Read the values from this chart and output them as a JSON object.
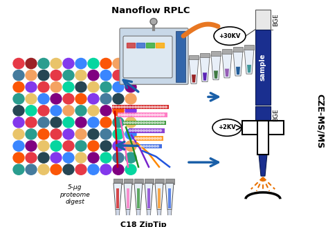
{
  "bg_color": "#ffffff",
  "label_nanoflow": "Nanoflow RPLC",
  "label_ziptip": "C18 ZipTip",
  "label_proteome": "5-μg\nproteome\ndigest",
  "label_cze": "CZE-MS/MS",
  "label_bge_top": "BGE",
  "label_bge_bot": "BGE",
  "label_sample": "sample",
  "label_30kv": "+30KV",
  "label_2kv": "+2KV",
  "arrow_color": "#1a5fa8",
  "figsize": [
    4.74,
    3.29
  ],
  "dpi": 100,
  "dot_grid": [
    [
      "#e63946",
      "#9b2226",
      "#2a9d8f",
      "#e9c46a",
      "#8338ec",
      "#3a86ff",
      "#06d6a0",
      "#fb5607",
      "#f4a261",
      "#457b9d"
    ],
    [
      "#457b9d",
      "#f4a261",
      "#264653",
      "#e63946",
      "#2a9d8f",
      "#e9c46a",
      "#800080",
      "#3a86ff",
      "#e63946",
      "#06d6a0"
    ],
    [
      "#fb5607",
      "#8338ec",
      "#e63946",
      "#f4a261",
      "#06d6a0",
      "#264653",
      "#e9c46a",
      "#2a9d8f",
      "#3a86ff",
      "#800080"
    ],
    [
      "#2a9d8f",
      "#e9c46a",
      "#3a86ff",
      "#800080",
      "#e63946",
      "#fb5607",
      "#8338ec",
      "#457b9d",
      "#264653",
      "#f4a261"
    ],
    [
      "#264653",
      "#06d6a0",
      "#e63946",
      "#3a86ff",
      "#f4a261",
      "#2a9d8f",
      "#e9c46a",
      "#800080",
      "#fb5607",
      "#8338ec"
    ],
    [
      "#8338ec",
      "#e63946",
      "#457b9d",
      "#264653",
      "#06d6a0",
      "#800080",
      "#3a86ff",
      "#fb5607",
      "#2a9d8f",
      "#e9c46a"
    ],
    [
      "#e9c46a",
      "#2a9d8f",
      "#fb5607",
      "#e63946",
      "#8338ec",
      "#f4a261",
      "#264653",
      "#457b9d",
      "#06d6a0",
      "#3a86ff"
    ],
    [
      "#3a86ff",
      "#800080",
      "#e9c46a",
      "#06d6a0",
      "#e63946",
      "#2a9d8f",
      "#fb5607",
      "#264653",
      "#8338ec",
      "#f4a261"
    ],
    [
      "#fb5607",
      "#e63946",
      "#264653",
      "#8338ec",
      "#3a86ff",
      "#e9c46a",
      "#800080",
      "#06d6a0",
      "#457b9d",
      "#2a9d8f"
    ],
    [
      "#2a9d8f",
      "#457b9d",
      "#e9c46a",
      "#fb5607",
      "#264653",
      "#e63946",
      "#3a86ff",
      "#8338ec",
      "#800080",
      "#06d6a0"
    ]
  ],
  "ziptip_colors": [
    "#cc0000",
    "#ff66bb",
    "#228b22",
    "#7722cc",
    "#ff8800",
    "#2255dd"
  ],
  "capillary_dark": "#1a2f8f",
  "capillary_mid": "#2244aa",
  "cross_color": "#ffffff",
  "spray_color": "#e87000"
}
